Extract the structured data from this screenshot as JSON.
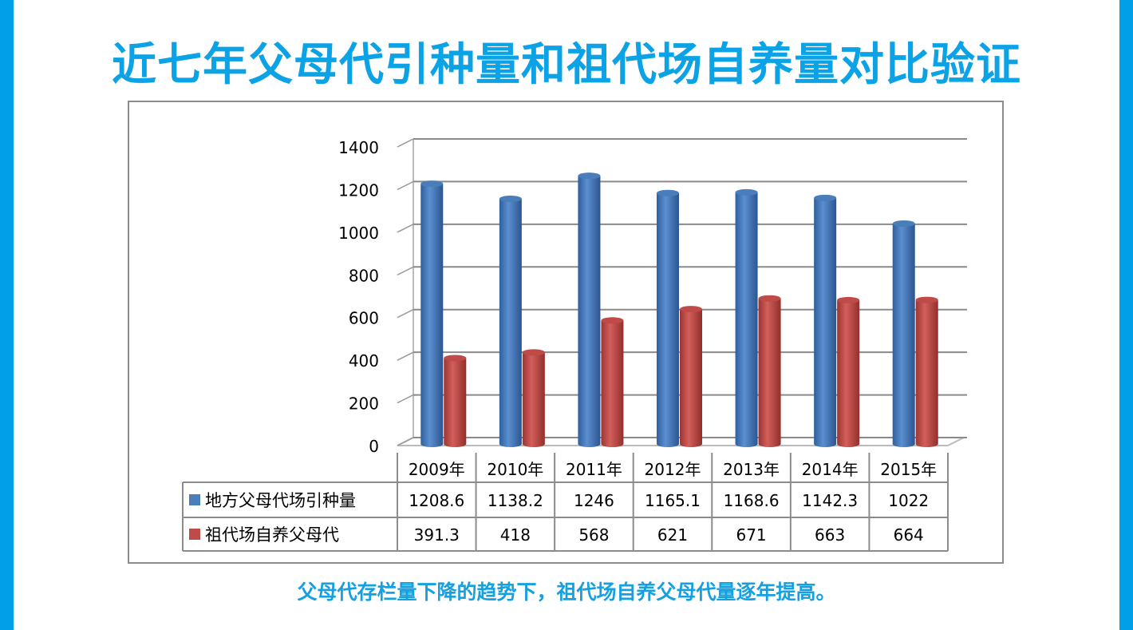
{
  "title": "近七年父母代引种量和祖代场自养量对比验证",
  "caption": "父母代存栏量下降的趋势下，祖代场自养父母代量逐年提高。",
  "chart_data": {
    "type": "bar",
    "title": "近七年父母代引种量和祖代场自养量对比验证",
    "categories": [
      "2009年",
      "2010年",
      "2011年",
      "2012年",
      "2013年",
      "2014年",
      "2015年"
    ],
    "series": [
      {
        "name": "地方父母代场引种量",
        "color": "#4a7ebb",
        "values": [
          1208.6,
          1138.2,
          1246,
          1165.1,
          1168.6,
          1142.3,
          1022
        ],
        "labels": [
          "1208.6",
          "1138.2",
          "1246",
          "1165.1",
          "1168.6",
          "1142.3",
          "1022"
        ]
      },
      {
        "name": "祖代场自养父母代",
        "color": "#be4b48",
        "values": [
          391.3,
          418,
          568,
          621,
          671,
          663,
          664
        ],
        "labels": [
          "391.3",
          "418",
          "568",
          "621",
          "671",
          "663",
          "664"
        ]
      }
    ],
    "yticks": [
      "0",
      "200",
      "400",
      "600",
      "800",
      "1000",
      "1200",
      "1400"
    ],
    "ylim": [
      0,
      1400
    ],
    "grid": true,
    "legend": "data-table"
  }
}
